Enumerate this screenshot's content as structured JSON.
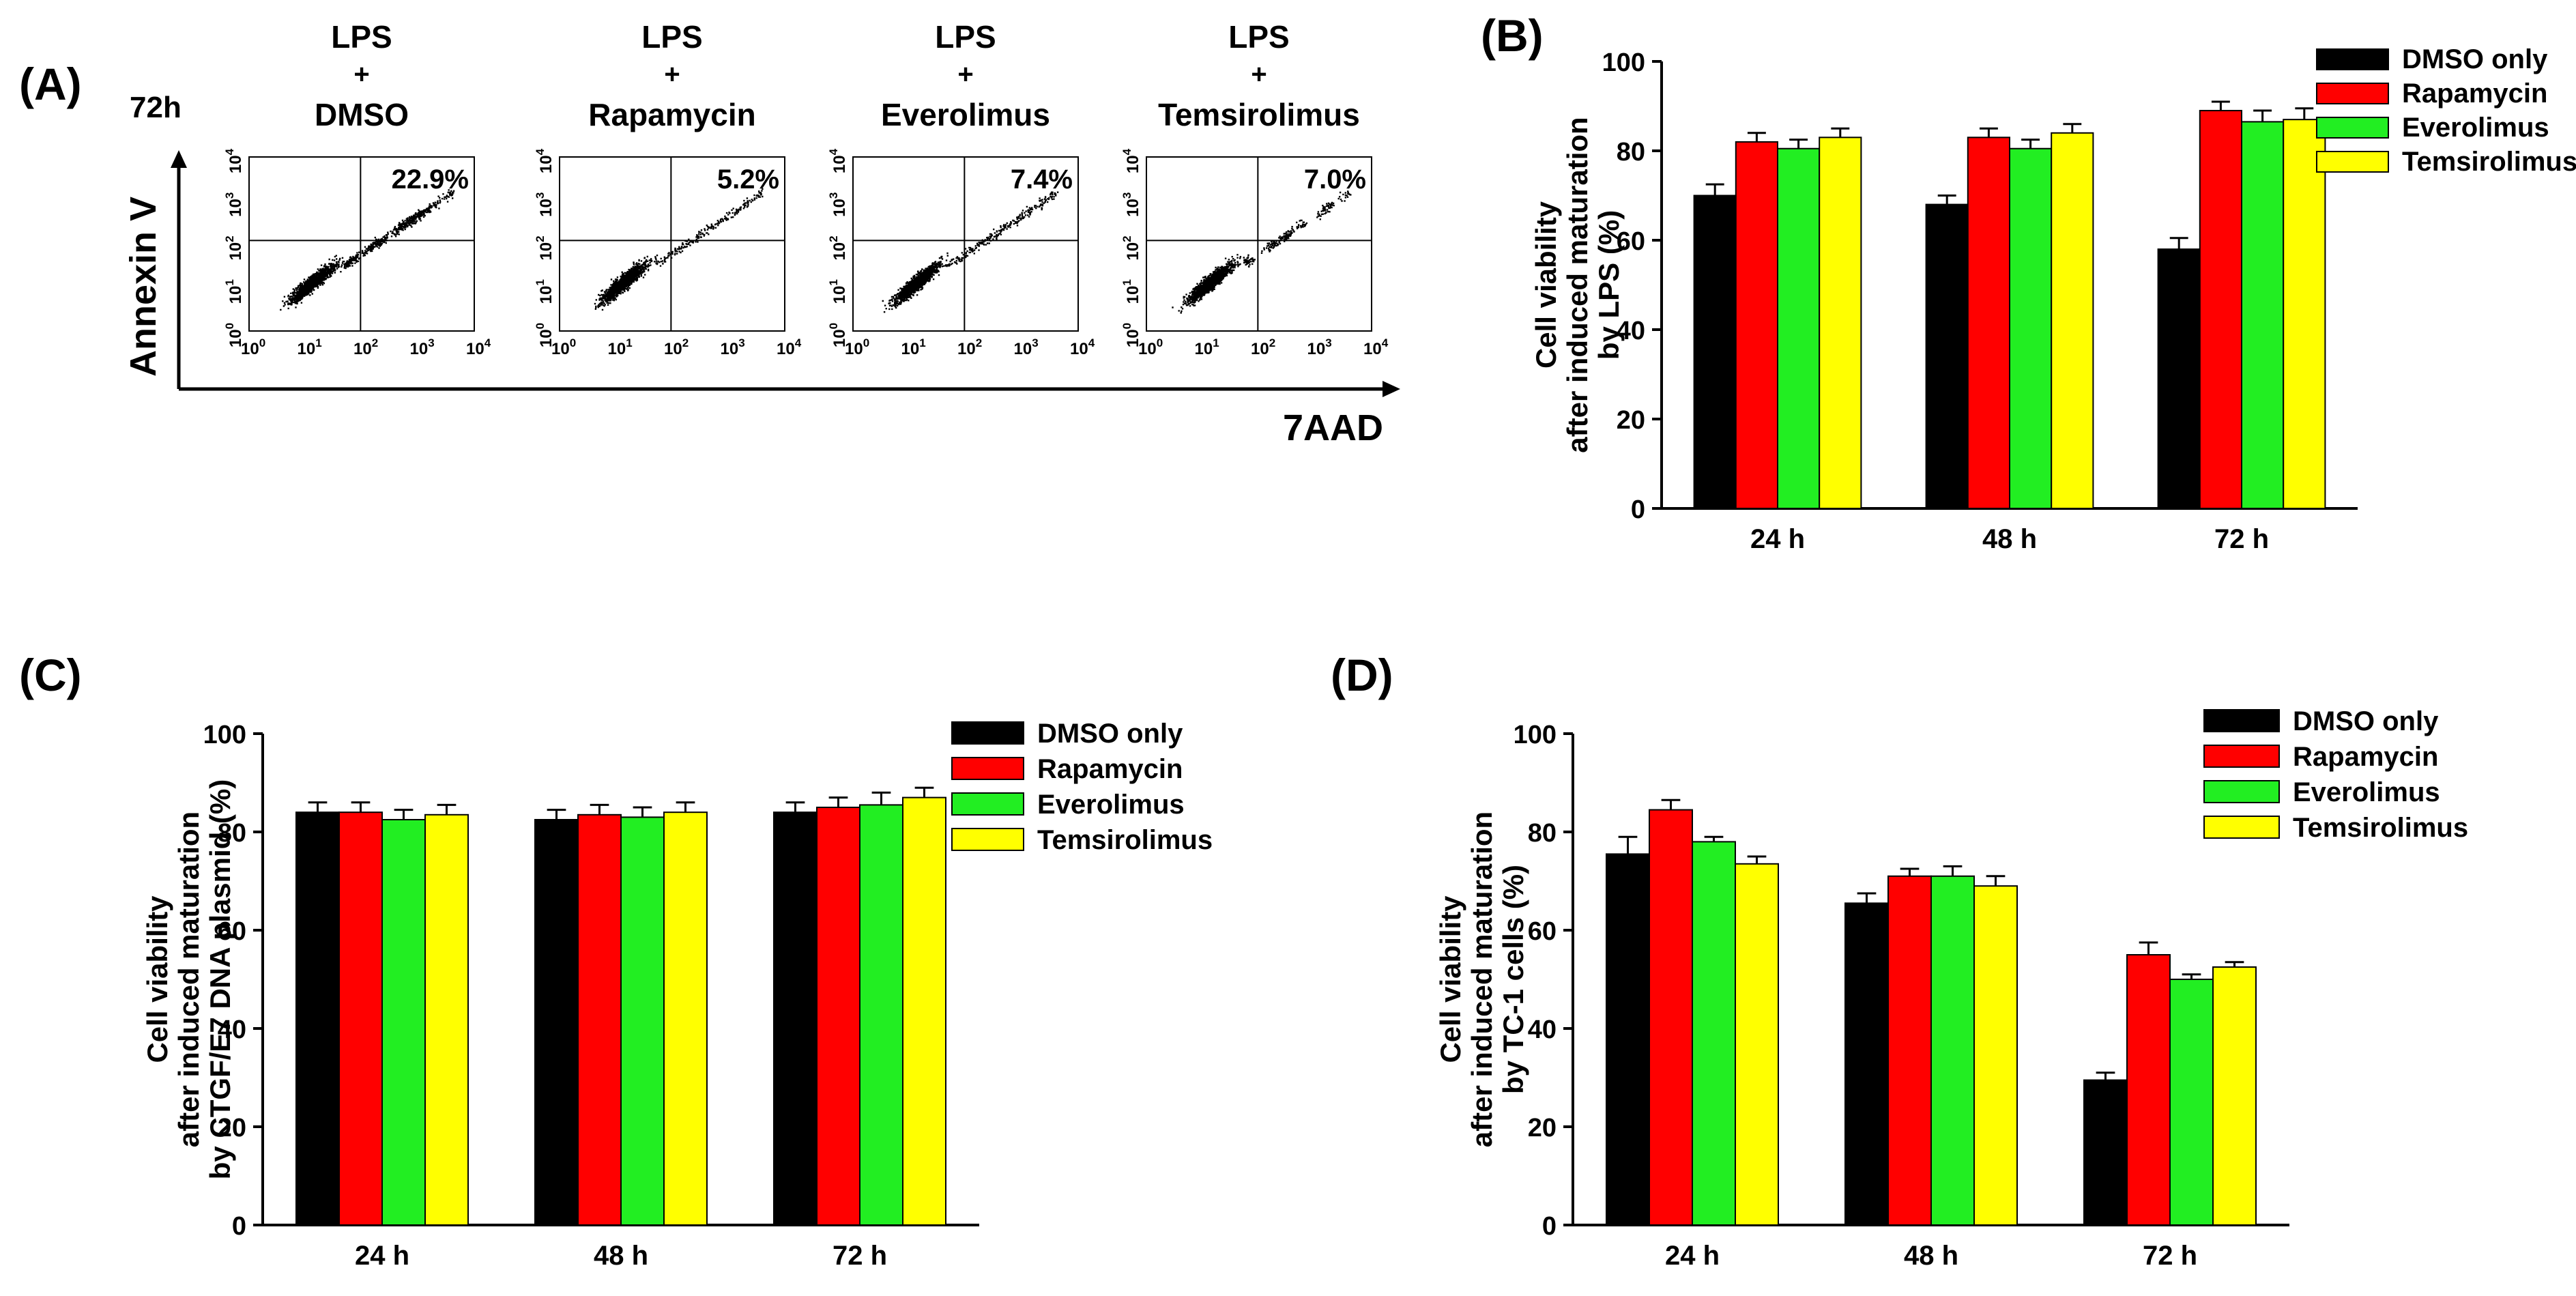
{
  "panels": {
    "A": "(A)",
    "B": "(B)",
    "C": "(C)",
    "D": "(D)"
  },
  "flow": {
    "time_label": "72h",
    "y_axis_label": "Annexin V",
    "x_axis_label": "7AAD",
    "plots": [
      {
        "line1": "LPS",
        "line2": "+",
        "line3": "DMSO",
        "percent": "22.9%",
        "percent_value": 22.9
      },
      {
        "line1": "LPS",
        "line2": "+",
        "line3": "Rapamycin",
        "percent": "5.2%",
        "percent_value": 5.2
      },
      {
        "line1": "LPS",
        "line2": "+",
        "line3": "Everolimus",
        "percent": "7.4%",
        "percent_value": 7.4
      },
      {
        "line1": "LPS",
        "line2": "+",
        "line3": "Temsirolimus",
        "percent": "7.0%",
        "percent_value": 7.0
      }
    ],
    "tick_base": "10",
    "tick_exponents": [
      "0",
      "1",
      "2",
      "3",
      "4"
    ]
  },
  "legend": [
    "DMSO only",
    "Rapamycin",
    "Everolimus",
    "Temsirolimus"
  ],
  "colors": {
    "DMSO only": "#000000",
    "Rapamycin": "#ff0000",
    "Everolimus": "#22ee22",
    "Temsirolimus": "#ffff00"
  },
  "chart_data": [
    {
      "panel": "B",
      "type": "bar",
      "categories": [
        "24 h",
        "48 h",
        "72 h"
      ],
      "ylabel": [
        "Cell viability",
        "after induced maturation",
        "by LPS (%)"
      ],
      "ylim": [
        0,
        100
      ],
      "yticks": [
        "0",
        "20",
        "40",
        "60",
        "80",
        "100"
      ],
      "series": [
        {
          "name": "DMSO only",
          "values": [
            70,
            68,
            58
          ],
          "errors": [
            2.5,
            2,
            2.5
          ]
        },
        {
          "name": "Rapamycin",
          "values": [
            82,
            83,
            89
          ],
          "errors": [
            2,
            2,
            2
          ]
        },
        {
          "name": "Everolimus",
          "values": [
            80.5,
            80.5,
            86.5
          ],
          "errors": [
            2,
            2,
            2.5
          ]
        },
        {
          "name": "Temsirolimus",
          "values": [
            83,
            84,
            87
          ],
          "errors": [
            2,
            2,
            2.5
          ]
        }
      ]
    },
    {
      "panel": "C",
      "type": "bar",
      "categories": [
        "24 h",
        "48 h",
        "72 h"
      ],
      "ylabel": [
        "Cell viability",
        "after induced maturation",
        "by CTGF/E7 DNA plasmid (%)"
      ],
      "ylim": [
        0,
        100
      ],
      "yticks": [
        "0",
        "20",
        "40",
        "60",
        "80",
        "100"
      ],
      "series": [
        {
          "name": "DMSO only",
          "values": [
            84,
            82.5,
            84
          ],
          "errors": [
            2,
            2,
            2
          ]
        },
        {
          "name": "Rapamycin",
          "values": [
            84,
            83.5,
            85
          ],
          "errors": [
            2,
            2,
            2
          ]
        },
        {
          "name": "Everolimus",
          "values": [
            82.5,
            83,
            85.5
          ],
          "errors": [
            2,
            2,
            2.5
          ]
        },
        {
          "name": "Temsirolimus",
          "values": [
            83.5,
            84,
            87
          ],
          "errors": [
            2,
            2,
            2
          ]
        }
      ]
    },
    {
      "panel": "D",
      "type": "bar",
      "categories": [
        "24 h",
        "48 h",
        "72 h"
      ],
      "ylabel": [
        "Cell viability",
        "after induced maturation",
        "by TC-1 cells (%)"
      ],
      "ylim": [
        0,
        100
      ],
      "yticks": [
        "0",
        "20",
        "40",
        "60",
        "80",
        "100"
      ],
      "series": [
        {
          "name": "DMSO only",
          "values": [
            75.5,
            65.5,
            29.5
          ],
          "errors": [
            3.5,
            2,
            1.5
          ]
        },
        {
          "name": "Rapamycin",
          "values": [
            84.5,
            71,
            55
          ],
          "errors": [
            2,
            1.5,
            2.5
          ]
        },
        {
          "name": "Everolimus",
          "values": [
            78,
            71,
            50
          ],
          "errors": [
            1,
            2,
            1
          ]
        },
        {
          "name": "Temsirolimus",
          "values": [
            73.5,
            69,
            52.5
          ],
          "errors": [
            1.5,
            2,
            1
          ]
        }
      ]
    }
  ]
}
